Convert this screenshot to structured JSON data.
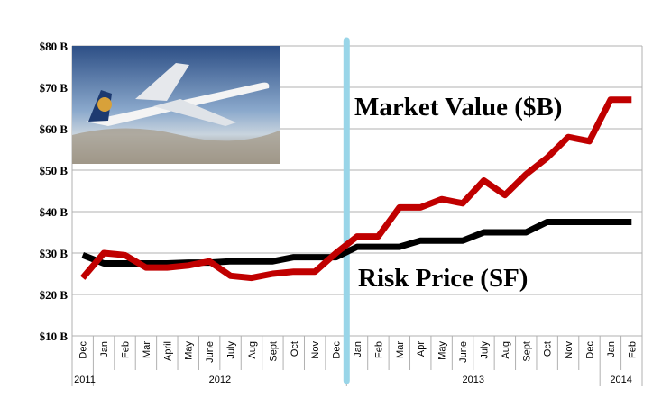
{
  "chart_data": {
    "type": "line",
    "title": "",
    "xlabel": "",
    "ylabel": "",
    "ylim": [
      10,
      80
    ],
    "yticks": [
      "$10 B",
      "$20 B",
      "$30 B",
      "$40 B",
      "$50 B",
      "$60 B",
      "$70 B",
      "$80 B"
    ],
    "ytick_values": [
      10,
      20,
      30,
      40,
      50,
      60,
      70,
      80
    ],
    "grid": true,
    "categories": [
      "Dec",
      "Jan",
      "Feb",
      "Mar",
      "April",
      "May",
      "June",
      "July",
      "Aug",
      "Sept",
      "Oct",
      "Nov",
      "Dec",
      "Jan",
      "Feb",
      "Mar",
      "Apr",
      "May",
      "June",
      "July",
      "Aug",
      "Sept",
      "Oct",
      "Nov",
      "Dec",
      "Jan",
      "Feb"
    ],
    "year_groups": [
      {
        "label": "2011",
        "start": 0,
        "end": 0
      },
      {
        "label": "2012",
        "start": 1,
        "end": 12
      },
      {
        "label": "2013",
        "start": 13,
        "end": 24
      },
      {
        "label": "2014",
        "start": 25,
        "end": 26
      }
    ],
    "series": [
      {
        "name": "Market Value ($B)",
        "color": "#c00000",
        "values": [
          24,
          30,
          29.5,
          26.5,
          26.5,
          27,
          28,
          24.5,
          24,
          25,
          25.5,
          25.5,
          30,
          34,
          34,
          41,
          41,
          43,
          42,
          47.5,
          44,
          49,
          53,
          58,
          57,
          67,
          67
        ]
      },
      {
        "name": "Risk Price (SF)",
        "color": "#000000",
        "values": [
          29.5,
          27.5,
          27.5,
          27.5,
          27.5,
          27.7,
          27.7,
          28,
          28,
          28,
          29,
          29,
          29,
          31.5,
          31.5,
          31.5,
          33,
          33,
          33,
          35,
          35,
          35,
          37.5,
          37.5,
          37.5,
          37.5,
          37.5
        ]
      }
    ],
    "annotations": [
      "Market Value ($B)",
      "Risk Price (SF)"
    ],
    "marker_line": {
      "after_index": 12,
      "color": "#99d5e8"
    }
  }
}
